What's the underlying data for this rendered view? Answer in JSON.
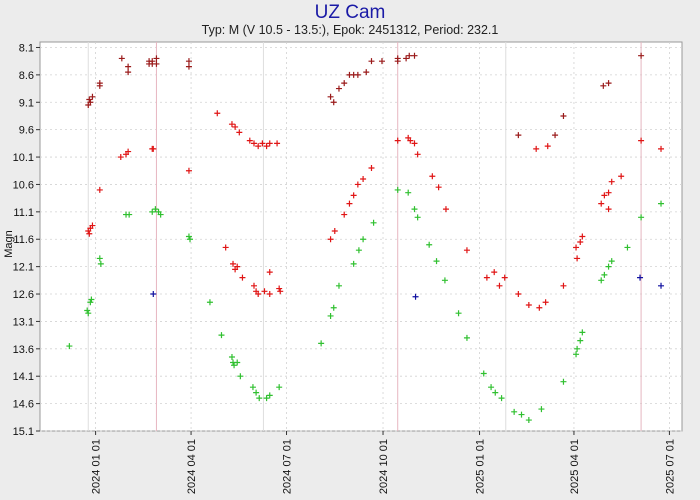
{
  "chart_data": {
    "type": "scatter",
    "title": "UZ Cam",
    "subtitle": "Typ: M (V 10.5 - 13.5:), Epok: 2451312, Period: 232.1",
    "ylabel": "Magn",
    "xlabel": "",
    "y_inverted": true,
    "xlim": [
      "2023-11-09",
      "2025-07-13"
    ],
    "ylim": [
      8.0,
      15.1
    ],
    "y_ticks": [
      8.1,
      8.6,
      9.1,
      9.6,
      10.1,
      10.6,
      11.1,
      11.6,
      12.1,
      12.6,
      13.1,
      13.6,
      14.1,
      14.6,
      15.1
    ],
    "x_ticks": [
      "2024 01 01",
      "2024 04 01",
      "2024 07 01",
      "2024 10 01",
      "2025 01 01",
      "2025 04 01",
      "2025 07 01"
    ],
    "grid": true,
    "maxima_lines": [
      "2024-02-28",
      "2024-10-15",
      "2025-06-04"
    ],
    "minima_lines": [
      "2023-12-25",
      "2024-06-09",
      "2025-01-26"
    ],
    "colors": {
      "background": "#ececec",
      "plot_bg": "#ffffff",
      "grid": "#d2d2d2",
      "maxima_line": "#e6b6c0",
      "minima_line": "#dedede",
      "series_a": "#9a1a1a",
      "series_b": "#e01515",
      "series_c": "#30c030",
      "series_d": "#1010a0",
      "title": "#1a1aa6"
    },
    "series": [
      {
        "color": "#9a1a1a",
        "points": [
          [
            "2023-12-25",
            9.15
          ],
          [
            "2023-12-26",
            9.05
          ],
          [
            "2023-12-27",
            9.1
          ],
          [
            "2023-12-29",
            9.0
          ],
          [
            "2024-01-05",
            8.75
          ],
          [
            "2024-01-05",
            8.8
          ],
          [
            "2024-01-26",
            8.3
          ],
          [
            "2024-02-01",
            8.45
          ],
          [
            "2024-02-01",
            8.55
          ],
          [
            "2024-02-21",
            8.4
          ],
          [
            "2024-02-21",
            8.35
          ],
          [
            "2024-02-24",
            8.4
          ],
          [
            "2024-02-24",
            8.35
          ],
          [
            "2024-02-28",
            8.3
          ],
          [
            "2024-02-28",
            8.4
          ],
          [
            "2024-03-30",
            8.35
          ],
          [
            "2024-03-30",
            8.45
          ],
          [
            "2024-08-12",
            9.0
          ],
          [
            "2024-08-15",
            9.1
          ],
          [
            "2024-08-20",
            8.85
          ],
          [
            "2024-08-25",
            8.75
          ],
          [
            "2024-08-30",
            8.6
          ],
          [
            "2024-09-03",
            8.6
          ],
          [
            "2024-09-07",
            8.6
          ],
          [
            "2024-09-15",
            8.55
          ],
          [
            "2024-09-20",
            8.35
          ],
          [
            "2024-09-30",
            8.35
          ],
          [
            "2024-10-15",
            8.3
          ],
          [
            "2024-10-15",
            8.35
          ],
          [
            "2024-10-23",
            8.3
          ],
          [
            "2024-10-26",
            8.25
          ],
          [
            "2024-10-31",
            8.25
          ],
          [
            "2025-02-07",
            9.7
          ],
          [
            "2025-03-14",
            9.7
          ],
          [
            "2025-03-22",
            9.35
          ],
          [
            "2025-04-29",
            8.8
          ],
          [
            "2025-05-04",
            8.75
          ],
          [
            "2025-06-04",
            8.25
          ]
        ]
      },
      {
        "color": "#e01515",
        "points": [
          [
            "2023-12-25",
            11.45
          ],
          [
            "2023-12-26",
            11.5
          ],
          [
            "2023-12-27",
            11.4
          ],
          [
            "2023-12-29",
            11.35
          ],
          [
            "2024-01-05",
            10.7
          ],
          [
            "2024-01-25",
            10.1
          ],
          [
            "2024-01-30",
            10.05
          ],
          [
            "2024-02-01",
            10.0
          ],
          [
            "2024-02-24",
            9.95
          ],
          [
            "2024-02-25",
            9.95
          ],
          [
            "2024-03-30",
            10.35
          ],
          [
            "2024-04-26",
            9.3
          ],
          [
            "2024-05-10",
            9.5
          ],
          [
            "2024-05-13",
            9.55
          ],
          [
            "2024-05-17",
            9.65
          ],
          [
            "2024-05-27",
            9.8
          ],
          [
            "2024-05-31",
            9.85
          ],
          [
            "2024-06-04",
            9.9
          ],
          [
            "2024-06-08",
            9.85
          ],
          [
            "2024-06-12",
            9.9
          ],
          [
            "2024-06-15",
            9.85
          ],
          [
            "2024-06-22",
            9.85
          ],
          [
            "2024-05-04",
            11.75
          ],
          [
            "2024-05-11",
            12.05
          ],
          [
            "2024-05-13",
            12.15
          ],
          [
            "2024-05-15",
            12.1
          ],
          [
            "2024-05-20",
            12.3
          ],
          [
            "2024-05-31",
            12.45
          ],
          [
            "2024-06-02",
            12.55
          ],
          [
            "2024-06-04",
            12.6
          ],
          [
            "2024-06-10",
            12.55
          ],
          [
            "2024-06-15",
            12.6
          ],
          [
            "2024-06-15",
            12.2
          ],
          [
            "2024-06-24",
            12.5
          ],
          [
            "2024-06-25",
            12.55
          ],
          [
            "2024-08-12",
            11.6
          ],
          [
            "2024-08-16",
            11.45
          ],
          [
            "2024-08-25",
            11.15
          ],
          [
            "2024-08-30",
            10.95
          ],
          [
            "2024-09-03",
            10.8
          ],
          [
            "2024-09-07",
            10.6
          ],
          [
            "2024-09-12",
            10.5
          ],
          [
            "2024-09-20",
            10.3
          ],
          [
            "2024-10-15",
            9.8
          ],
          [
            "2024-10-25",
            9.75
          ],
          [
            "2024-10-27",
            9.8
          ],
          [
            "2024-10-31",
            9.85
          ],
          [
            "2024-11-03",
            10.05
          ],
          [
            "2024-11-17",
            10.45
          ],
          [
            "2024-11-23",
            10.65
          ],
          [
            "2024-11-30",
            11.05
          ],
          [
            "2024-12-20",
            11.8
          ],
          [
            "2025-01-08",
            12.3
          ],
          [
            "2025-01-15",
            12.2
          ],
          [
            "2025-01-20",
            12.45
          ],
          [
            "2025-01-25",
            12.3
          ],
          [
            "2025-02-07",
            12.6
          ],
          [
            "2025-02-17",
            12.8
          ],
          [
            "2025-02-24",
            9.95
          ],
          [
            "2025-02-27",
            12.85
          ],
          [
            "2025-03-05",
            12.75
          ],
          [
            "2025-03-07",
            9.9
          ],
          [
            "2025-03-22",
            12.45
          ],
          [
            "2025-04-03",
            11.75
          ],
          [
            "2025-04-04",
            11.95
          ],
          [
            "2025-04-07",
            11.65
          ],
          [
            "2025-04-09",
            11.55
          ],
          [
            "2025-04-27",
            10.95
          ],
          [
            "2025-04-30",
            10.8
          ],
          [
            "2025-05-04",
            10.75
          ],
          [
            "2025-05-07",
            10.55
          ],
          [
            "2025-05-04",
            11.05
          ],
          [
            "2025-05-16",
            10.45
          ],
          [
            "2025-06-04",
            9.8
          ],
          [
            "2025-06-23",
            9.95
          ]
        ]
      },
      {
        "color": "#30c030",
        "points": [
          [
            "2023-12-07",
            13.55
          ],
          [
            "2023-12-24",
            12.9
          ],
          [
            "2023-12-25",
            12.95
          ],
          [
            "2023-12-27",
            12.75
          ],
          [
            "2023-12-28",
            12.7
          ],
          [
            "2024-01-05",
            11.95
          ],
          [
            "2024-01-06",
            12.05
          ],
          [
            "2024-01-30",
            11.15
          ],
          [
            "2024-02-02",
            11.15
          ],
          [
            "2024-02-24",
            11.1
          ],
          [
            "2024-02-27",
            11.05
          ],
          [
            "2024-03-01",
            11.1
          ],
          [
            "2024-03-03",
            11.15
          ],
          [
            "2024-03-30",
            11.55
          ],
          [
            "2024-03-31",
            11.6
          ],
          [
            "2024-04-19",
            12.75
          ],
          [
            "2024-04-30",
            13.35
          ],
          [
            "2024-05-10",
            13.75
          ],
          [
            "2024-05-11",
            13.85
          ],
          [
            "2024-05-12",
            13.9
          ],
          [
            "2024-05-15",
            13.85
          ],
          [
            "2024-05-18",
            14.1
          ],
          [
            "2024-05-30",
            14.3
          ],
          [
            "2024-06-02",
            14.4
          ],
          [
            "2024-06-05",
            14.5
          ],
          [
            "2024-06-12",
            14.5
          ],
          [
            "2024-06-15",
            14.45
          ],
          [
            "2024-06-24",
            14.3
          ],
          [
            "2024-08-03",
            13.5
          ],
          [
            "2024-08-12",
            13.0
          ],
          [
            "2024-08-15",
            12.85
          ],
          [
            "2024-08-20",
            12.45
          ],
          [
            "2024-09-03",
            12.05
          ],
          [
            "2024-09-08",
            11.8
          ],
          [
            "2024-09-12",
            11.6
          ],
          [
            "2024-09-22",
            11.3
          ],
          [
            "2024-10-15",
            10.7
          ],
          [
            "2024-10-25",
            10.75
          ],
          [
            "2024-10-31",
            11.05
          ],
          [
            "2024-11-03",
            11.2
          ],
          [
            "2024-11-14",
            11.7
          ],
          [
            "2024-11-21",
            12.0
          ],
          [
            "2024-11-29",
            12.35
          ],
          [
            "2024-12-12",
            12.95
          ],
          [
            "2024-12-20",
            13.4
          ],
          [
            "2025-01-05",
            14.05
          ],
          [
            "2025-01-12",
            14.3
          ],
          [
            "2025-01-16",
            14.4
          ],
          [
            "2025-01-22",
            14.5
          ],
          [
            "2025-02-03",
            14.75
          ],
          [
            "2025-02-10",
            14.8
          ],
          [
            "2025-02-17",
            14.9
          ],
          [
            "2025-03-01",
            14.7
          ],
          [
            "2025-03-22",
            14.2
          ],
          [
            "2025-04-03",
            13.7
          ],
          [
            "2025-04-04",
            13.6
          ],
          [
            "2025-04-07",
            13.45
          ],
          [
            "2025-04-09",
            13.3
          ],
          [
            "2025-04-27",
            12.35
          ],
          [
            "2025-04-30",
            12.25
          ],
          [
            "2025-05-04",
            12.1
          ],
          [
            "2025-05-07",
            12.0
          ],
          [
            "2025-05-22",
            11.75
          ],
          [
            "2025-06-04",
            11.2
          ],
          [
            "2025-06-23",
            10.95
          ]
        ]
      },
      {
        "color": "#1010a0",
        "points": [
          [
            "2024-02-25",
            12.6
          ],
          [
            "2024-11-01",
            12.65
          ],
          [
            "2025-06-03",
            12.3
          ],
          [
            "2025-06-23",
            12.45
          ]
        ]
      }
    ]
  }
}
